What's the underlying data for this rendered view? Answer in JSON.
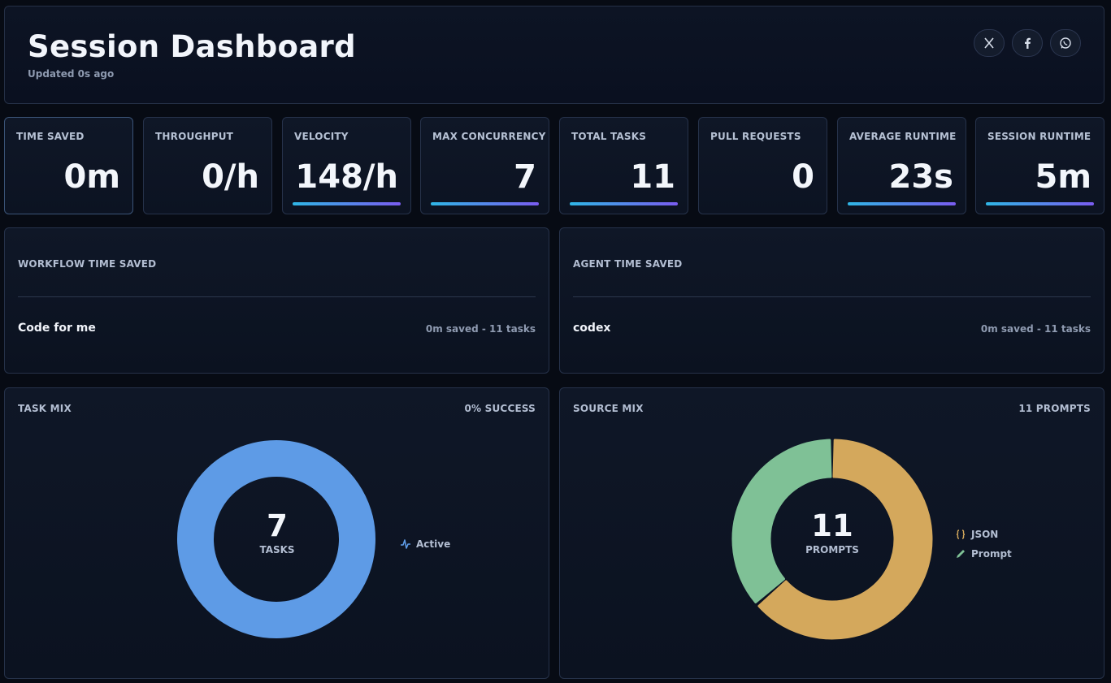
{
  "header": {
    "title": "Session Dashboard",
    "updated": "Updated 0s ago",
    "social": [
      "x-icon",
      "facebook-icon",
      "whatsapp-icon"
    ]
  },
  "stats": [
    {
      "label": "TIME SAVED",
      "value": "0m",
      "bar": false
    },
    {
      "label": "THROUGHPUT",
      "value": "0/h",
      "bar": false
    },
    {
      "label": "VELOCITY",
      "value": "148/h",
      "bar": true
    },
    {
      "label": "MAX CONCURRENCY",
      "value": "7",
      "bar": true
    },
    {
      "label": "TOTAL TASKS",
      "value": "11",
      "bar": true
    },
    {
      "label": "PULL REQUESTS",
      "value": "0",
      "bar": false
    },
    {
      "label": "AVERAGE RUNTIME",
      "value": "23s",
      "bar": true
    },
    {
      "label": "SESSION RUNTIME",
      "value": "5m",
      "bar": true
    }
  ],
  "workflow": {
    "title": "WORKFLOW TIME SAVED",
    "row_name": "Code for me",
    "row_meta": "0m saved - 11 tasks"
  },
  "agent": {
    "title": "AGENT TIME SAVED",
    "row_name": "codex",
    "row_meta": "0m saved - 11 tasks"
  },
  "task_mix": {
    "title": "TASK MIX",
    "right_label": "0% SUCCESS",
    "center_value": "7",
    "center_label": "TASKS",
    "legend": [
      {
        "label": "Active",
        "icon": "activity-icon",
        "color": "#5e9be6"
      }
    ],
    "chart_data": {
      "type": "pie",
      "categories": [
        "Active"
      ],
      "values": [
        7
      ],
      "colors": [
        "#5e9be6"
      ]
    }
  },
  "source_mix": {
    "title": "SOURCE MIX",
    "right_label": "11 PROMPTS",
    "center_value": "11",
    "center_label": "PROMPTS",
    "legend": [
      {
        "label": "JSON",
        "icon": "braces-icon",
        "color": "#d4a85c"
      },
      {
        "label": "Prompt",
        "icon": "pencil-icon",
        "color": "#7fc196"
      }
    ],
    "chart_data": {
      "type": "pie",
      "categories": [
        "JSON",
        "Prompt"
      ],
      "values": [
        7,
        4
      ],
      "colors": [
        "#d4a85c",
        "#7fc196"
      ]
    }
  }
}
